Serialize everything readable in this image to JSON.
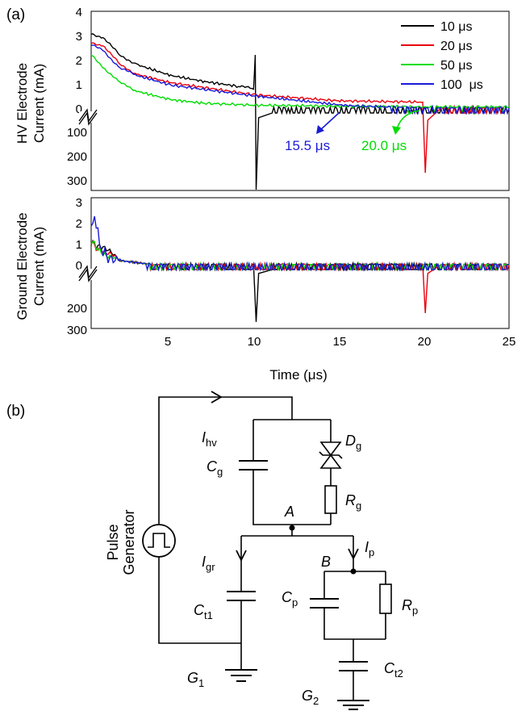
{
  "panel_a": {
    "label": "(a)",
    "top_ylabel": [
      "HV Electrode",
      "Current (mA)"
    ],
    "bottom_ylabel": [
      "Ground Electrode",
      "Current (mA)"
    ],
    "xlabel": "Time (μs)",
    "x_ticks": [
      "5",
      "10",
      "15",
      "20",
      "25"
    ],
    "top_upper_ticks": [
      "4",
      "3",
      "2",
      "1",
      "0"
    ],
    "top_lower_ticks": [
      "100",
      "200",
      "300"
    ],
    "bottom_upper_ticks": [
      "3",
      "2",
      "1",
      "0"
    ],
    "bottom_lower_ticks": [
      "200",
      "300"
    ],
    "legend": [
      "10 μs",
      "20 μs",
      "50 μs",
      "100  μs"
    ],
    "colors": {
      "s10": "#000000",
      "s20": "#e8000b",
      "s50": "#00dd00",
      "s100": "#1a1ad8"
    },
    "annotation_blue": "15.5 μs",
    "annotation_green": "20.0 μs"
  },
  "chart_data": [
    {
      "type": "line",
      "xlabel": "Time (μs)",
      "ylabel": "HV Electrode Current (mA)",
      "xlim": [
        0.3,
        25
      ],
      "broken_axis": {
        "upper_mA": [
          0,
          4
        ],
        "lower_mA": [
          0,
          350
        ],
        "lower_inverted": true
      },
      "series": [
        {
          "name": "10 μs",
          "x": [
            0.3,
            1.0,
            2.0,
            3.0,
            5.0,
            7.0,
            9.0,
            9.9,
            10.0,
            10.05,
            10.2,
            11.0,
            15.0,
            25.0
          ],
          "y": [
            3.1,
            2.9,
            2.2,
            1.8,
            1.35,
            1.1,
            0.9,
            0.8,
            2.2,
            -320,
            -20,
            0.0,
            0.0,
            0.0
          ]
        },
        {
          "name": "20 μs",
          "x": [
            0.3,
            1.0,
            2.0,
            3.0,
            5.0,
            10.0,
            15.0,
            19.9,
            20.05,
            20.2,
            21.0,
            25.0
          ],
          "y": [
            2.7,
            2.6,
            1.8,
            1.4,
            1.05,
            0.55,
            0.3,
            0.25,
            -250,
            -30,
            0.0,
            0.0
          ]
        },
        {
          "name": "50 μs",
          "x": [
            0.3,
            1.0,
            2.0,
            3.0,
            5.0,
            7.0,
            10.0,
            15.0,
            20.0,
            25.0
          ],
          "y": [
            2.2,
            1.7,
            1.05,
            0.7,
            0.35,
            0.2,
            0.12,
            0.08,
            0.05,
            0.05
          ]
        },
        {
          "name": "100  μs",
          "x": [
            0.3,
            1.0,
            2.0,
            3.0,
            5.0,
            10.0,
            15.5,
            20.0,
            25.0
          ],
          "y": [
            2.6,
            2.4,
            1.65,
            1.35,
            0.95,
            0.5,
            0.1,
            0.0,
            0.0
          ]
        }
      ]
    },
    {
      "type": "line",
      "xlabel": "Time (μs)",
      "ylabel": "Ground Electrode Current (mA)",
      "xlim": [
        0.3,
        25
      ],
      "broken_axis": {
        "upper_mA": [
          0,
          3
        ],
        "lower_mA": [
          0,
          300
        ],
        "lower_inverted": true
      },
      "series": [
        {
          "name": "10 μs",
          "x": [
            0.3,
            1.0,
            2.0,
            4.0,
            9.9,
            10.05,
            10.2,
            11.0,
            25.0
          ],
          "y": [
            1.2,
            0.8,
            0.2,
            0.0,
            0.0,
            -270,
            -20,
            0.0,
            0.0
          ]
        },
        {
          "name": "20 μs",
          "x": [
            0.3,
            1.0,
            2.0,
            4.0,
            19.9,
            20.05,
            20.2,
            21.0,
            25.0
          ],
          "y": [
            1.1,
            0.7,
            0.2,
            0.0,
            0.0,
            -225,
            -20,
            0.0,
            0.0
          ]
        },
        {
          "name": "50 μs",
          "x": [
            0.3,
            1.0,
            2.0,
            4.0,
            25.0
          ],
          "y": [
            1.0,
            0.6,
            0.2,
            0.0,
            0.0
          ]
        },
        {
          "name": "100  μs",
          "x": [
            0.3,
            0.6,
            1.0,
            2.0,
            4.0,
            25.0
          ],
          "y": [
            1.8,
            1.3,
            0.7,
            0.2,
            0.0,
            0.0
          ]
        }
      ]
    }
  ],
  "panel_b": {
    "label": "(b)",
    "pulse_generator": [
      "Pulse",
      "Generator"
    ],
    "I_hv": {
      "main": "I",
      "sub": "hv"
    },
    "I_gr": {
      "main": "I",
      "sub": "gr"
    },
    "I_p": {
      "main": "I",
      "sub": "p"
    },
    "C_g": {
      "main": "C",
      "sub": "g"
    },
    "D_g": {
      "main": "D",
      "sub": "g"
    },
    "R_g": {
      "main": "R",
      "sub": "g"
    },
    "C_t1": {
      "main": "C",
      "sub": "t1"
    },
    "C_p": {
      "main": "C",
      "sub": "p"
    },
    "R_p": {
      "main": "R",
      "sub": "p"
    },
    "C_t2": {
      "main": "C",
      "sub": "t2"
    },
    "G_1": {
      "main": "G",
      "sub": "1"
    },
    "G_2": {
      "main": "G",
      "sub": "2"
    },
    "node_A": "A",
    "node_B": "B"
  }
}
